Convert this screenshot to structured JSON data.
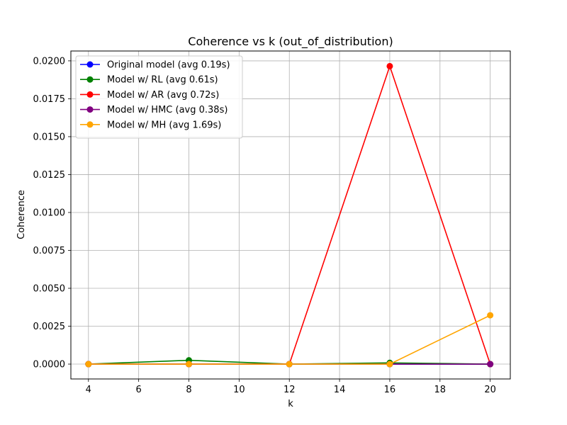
{
  "chart_data": {
    "type": "line",
    "title": "Coherence vs k (out_of_distribution)",
    "xlabel": "k",
    "ylabel": "Coherence",
    "xlim": [
      3.3,
      20.8
    ],
    "ylim": [
      -0.00098,
      0.02065
    ],
    "xticks": [
      4,
      6,
      8,
      10,
      12,
      14,
      16,
      18,
      20
    ],
    "xtick_labels": [
      "4",
      "6",
      "8",
      "10",
      "12",
      "14",
      "16",
      "18",
      "20"
    ],
    "yticks": [
      0,
      0.0025,
      0.005,
      0.0075,
      0.01,
      0.0125,
      0.015,
      0.0175,
      0.02
    ],
    "ytick_labels": [
      "0.0000",
      "0.0025",
      "0.0050",
      "0.0075",
      "0.0100",
      "0.0125",
      "0.0150",
      "0.0175",
      "0.0200"
    ],
    "grid": true,
    "legend_position": "top-left",
    "x": [
      4,
      8,
      12,
      16,
      20
    ],
    "series": [
      {
        "name": "Original model (avg 0.19s)",
        "color": "#0000ff",
        "values": [
          0,
          0,
          0,
          0,
          0
        ]
      },
      {
        "name": "Model w/ RL (avg 0.61s)",
        "color": "#008000",
        "values": [
          0,
          0.00025,
          0,
          8e-05,
          0
        ]
      },
      {
        "name": "Model w/ AR (avg 0.72s)",
        "color": "#ff0000",
        "values": [
          0,
          0,
          0,
          0.01965,
          0
        ]
      },
      {
        "name": "Model w/ HMC (avg 0.38s)",
        "color": "#800080",
        "values": [
          0,
          0,
          0,
          0,
          0
        ]
      },
      {
        "name": "Model w/ MH (avg 1.69s)",
        "color": "#ffa500",
        "values": [
          0,
          0,
          0,
          0,
          0.00322
        ]
      }
    ]
  }
}
